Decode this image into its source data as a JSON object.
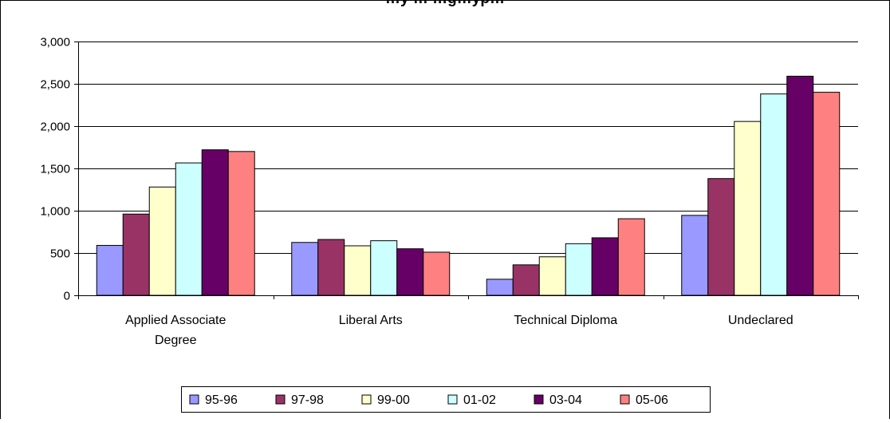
{
  "chart_data": {
    "type": "bar",
    "title": "…y … …g…yp…",
    "categories": [
      [
        "Applied Associate",
        "Degree"
      ],
      [
        "Liberal Arts"
      ],
      [
        "Technical Diploma"
      ],
      [
        "Undeclared"
      ]
    ],
    "series": [
      {
        "name": "95-96",
        "color": "#9999ff",
        "values": [
          590,
          625,
          190,
          945
        ]
      },
      {
        "name": "97-98",
        "color": "#993366",
        "values": [
          960,
          660,
          360,
          1380
        ]
      },
      {
        "name": "99-00",
        "color": "#ffffcc",
        "values": [
          1280,
          585,
          455,
          2055
        ]
      },
      {
        "name": "01-02",
        "color": "#ccffff",
        "values": [
          1565,
          645,
          610,
          2380
        ]
      },
      {
        "name": "03-04",
        "color": "#660066",
        "values": [
          1720,
          550,
          680,
          2590
        ]
      },
      {
        "name": "05-06",
        "color": "#ff8080",
        "values": [
          1700,
          510,
          905,
          2400
        ]
      }
    ],
    "ylim": [
      0,
      3000
    ],
    "yticks": [
      0,
      500,
      1000,
      1500,
      2000,
      2500,
      3000
    ],
    "ytick_labels": [
      "0",
      "500",
      "1,000",
      "1,500",
      "2,000",
      "2,500",
      "3,000"
    ],
    "xlabel": "",
    "ylabel": "",
    "grid": true,
    "legend_position": "bottom"
  }
}
